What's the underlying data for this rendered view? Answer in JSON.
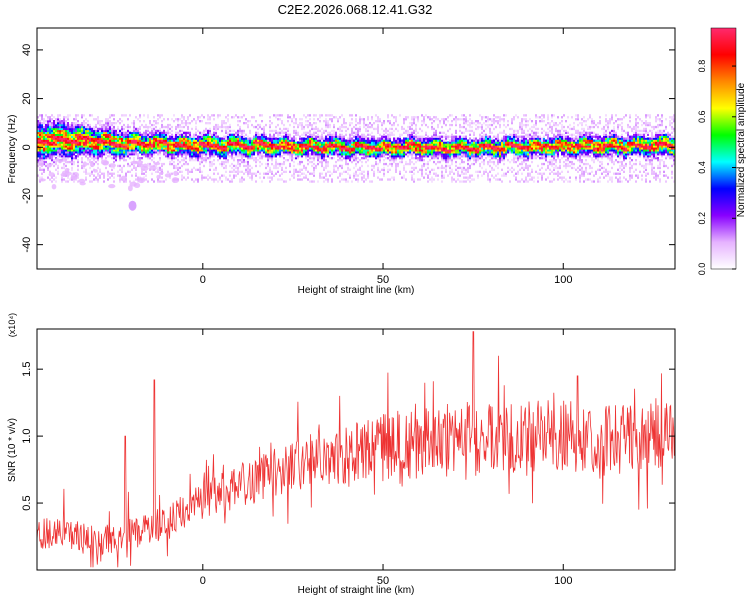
{
  "title": "C2E2.2026.068.12.41.G32",
  "chart_data": [
    {
      "type": "heatmap",
      "xlabel": "Height of straight line (km)",
      "ylabel": "Frequency (Hz)",
      "xlim": [
        -46,
        131
      ],
      "ylim": [
        -50,
        49
      ],
      "xticks": [
        0,
        50,
        100
      ],
      "yticks": [
        -40,
        -20,
        0,
        20,
        40
      ],
      "colorbar": {
        "label": "Normalized spectral amplitude",
        "ticks": [
          0.0,
          0.2,
          0.4,
          0.6,
          0.8
        ],
        "range": [
          0,
          0.95
        ],
        "colors": [
          "#ffffff",
          "#e6b3ff",
          "#8800ff",
          "#0000ff",
          "#00ffff",
          "#00ff00",
          "#ffff00",
          "#ff8800",
          "#ff0000",
          "#ff2a6e"
        ]
      },
      "ridge": {
        "description": "strong band near 0 Hz",
        "profile_x": [
          -46,
          -35,
          -25,
          -15,
          0,
          25,
          50,
          75,
          100,
          131
        ],
        "profile_y": [
          3,
          3,
          2,
          1.5,
          1,
          0.5,
          0,
          0,
          0.5,
          1
        ],
        "half_width_hz": [
          7,
          6,
          5,
          4,
          4,
          3.5,
          3.5,
          3.5,
          3.5,
          4
        ]
      }
    },
    {
      "type": "line",
      "xlabel": "Height of straight line (km)",
      "ylabel": "SNR (10 * v/v)",
      "multiplier": "(x10⁴)",
      "xlim": [
        -46,
        131
      ],
      "ylim": [
        0,
        1.8
      ],
      "xticks": [
        0,
        50,
        100
      ],
      "yticks": [
        0.5,
        1.0,
        1.5
      ],
      "ytick_labels": [
        "0.5",
        "1.0",
        "1.5"
      ],
      "color": "#ee3333",
      "trend": {
        "x": [
          -46,
          -35,
          -25,
          -15,
          -5,
          5,
          15,
          25,
          40,
          50,
          60,
          75,
          90,
          100,
          115,
          131
        ],
        "y": [
          0.28,
          0.25,
          0.23,
          0.3,
          0.45,
          0.58,
          0.68,
          0.78,
          0.85,
          0.92,
          0.95,
          0.98,
          0.98,
          1.0,
          0.98,
          1.02
        ]
      },
      "spikes": [
        {
          "x": -21.5,
          "y": 1.0
        },
        {
          "x": -13.5,
          "y": 1.42
        },
        {
          "x": 38,
          "y": 1.3
        },
        {
          "x": 75,
          "y": 1.78
        },
        {
          "x": 82,
          "y": 1.6
        },
        {
          "x": 104,
          "y": 1.45
        }
      ]
    }
  ]
}
